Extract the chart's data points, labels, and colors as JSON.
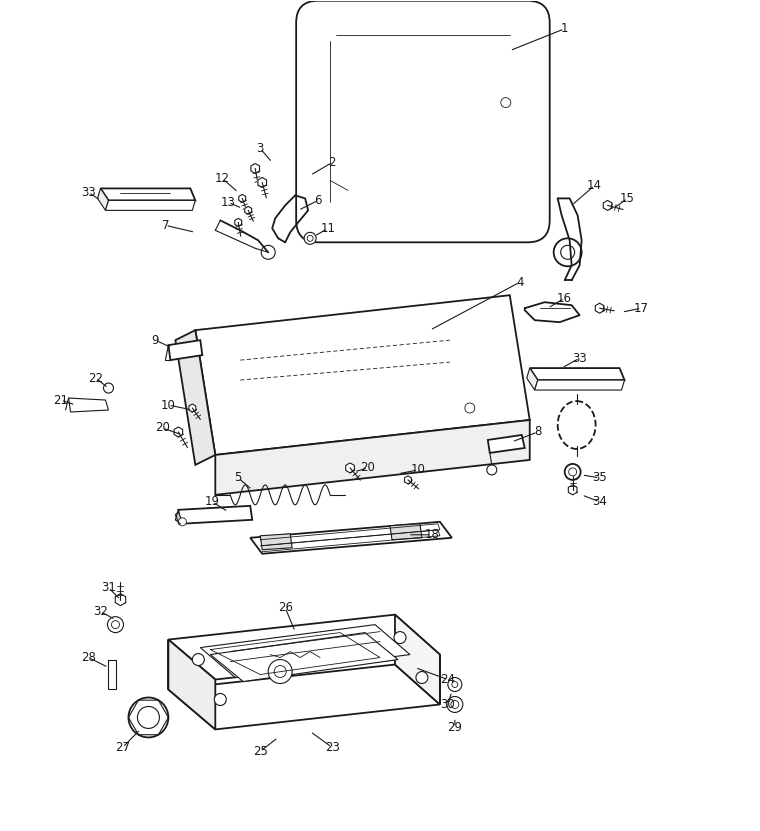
{
  "bg_color": "#ffffff",
  "line_color": "#1a1a1a",
  "fig_width": 7.6,
  "fig_height": 8.31,
  "dpi": 100
}
